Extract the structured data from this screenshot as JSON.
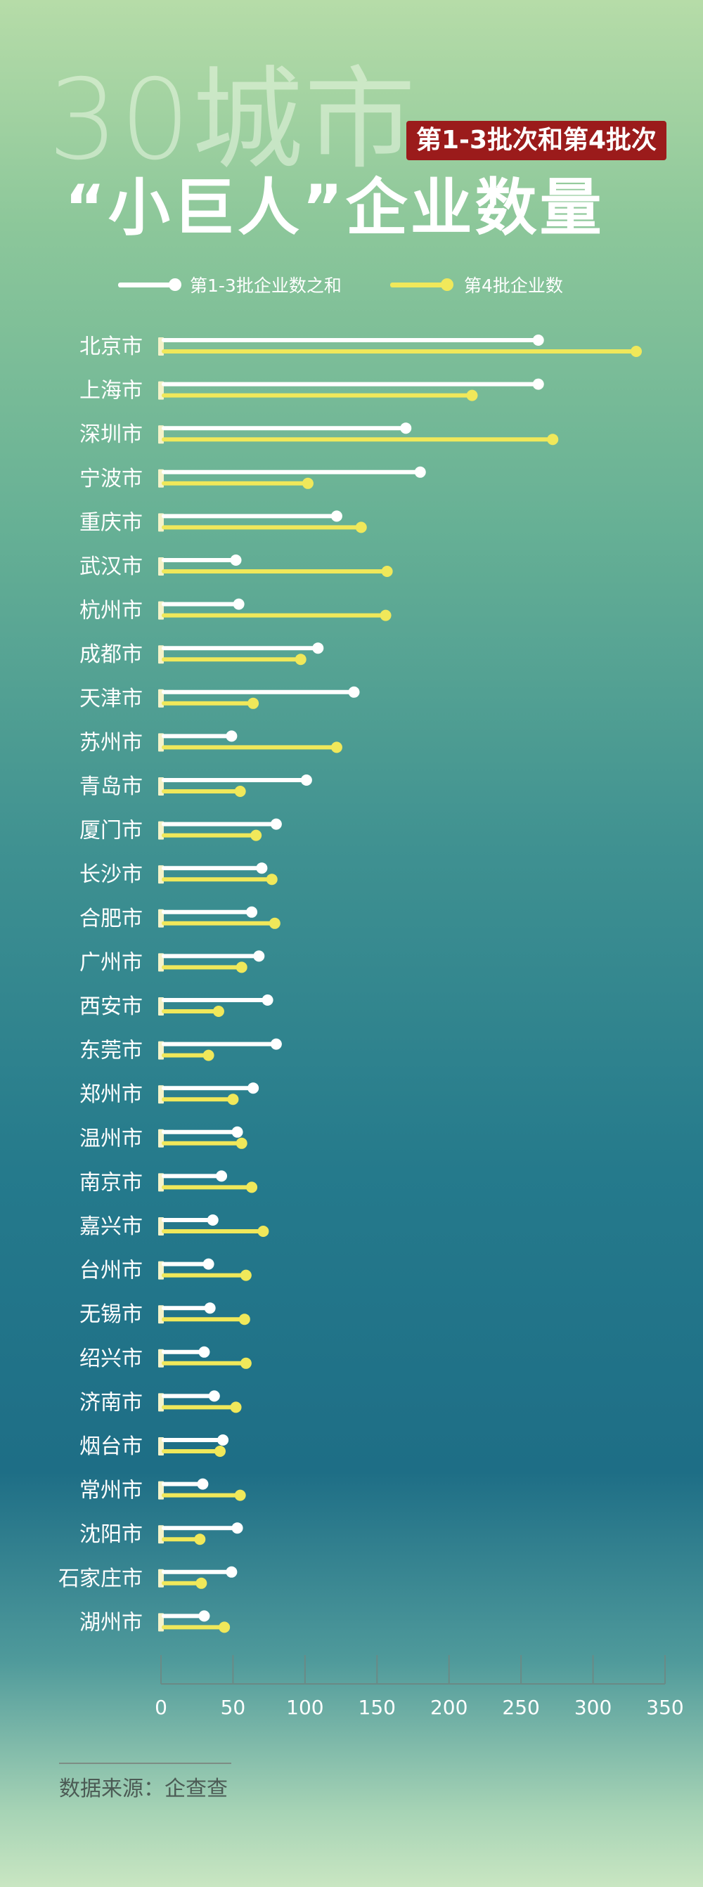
{
  "header": {
    "big_title": "30城市",
    "badge": "第1-3批次和第4批次",
    "sub_title": "“小巨人”企业数量"
  },
  "source": {
    "label": "数据来源：",
    "value": "企查查"
  },
  "colors": {
    "series1": "#ffffff",
    "series2": "#f0e85a",
    "badge_bg": "#9b1b1b",
    "axis": "#6a8a86"
  },
  "chart_data": {
    "type": "bar",
    "orientation": "horizontal",
    "style": "lollipop",
    "xlim": [
      0,
      350
    ],
    "x_ticks": [
      0,
      50,
      100,
      150,
      200,
      250,
      300,
      350
    ],
    "legend_position": "top",
    "categories": [
      "北京市",
      "上海市",
      "深圳市",
      "宁波市",
      "重庆市",
      "武汉市",
      "杭州市",
      "成都市",
      "天津市",
      "苏州市",
      "青岛市",
      "厦门市",
      "长沙市",
      "合肥市",
      "广州市",
      "西安市",
      "东莞市",
      "郑州市",
      "温州市",
      "南京市",
      "嘉兴市",
      "台州市",
      "无锡市",
      "绍兴市",
      "济南市",
      "烟台市",
      "常州市",
      "沈阳市",
      "石家庄市",
      "湖州市"
    ],
    "series": [
      {
        "name": "第1-3批企业数之和",
        "values": [
          262,
          262,
          170,
          180,
          122,
          52,
          54,
          109,
          134,
          49,
          101,
          80,
          70,
          63,
          68,
          74,
          80,
          64,
          53,
          42,
          36,
          33,
          34,
          30,
          37,
          43,
          29,
          53,
          49,
          30
        ]
      },
      {
        "name": "第4批企业数",
        "values": [
          330,
          216,
          272,
          102,
          139,
          157,
          156,
          97,
          64,
          122,
          55,
          66,
          77,
          79,
          56,
          40,
          33,
          50,
          56,
          63,
          71,
          59,
          58,
          59,
          52,
          41,
          55,
          27,
          28,
          44
        ]
      }
    ]
  }
}
